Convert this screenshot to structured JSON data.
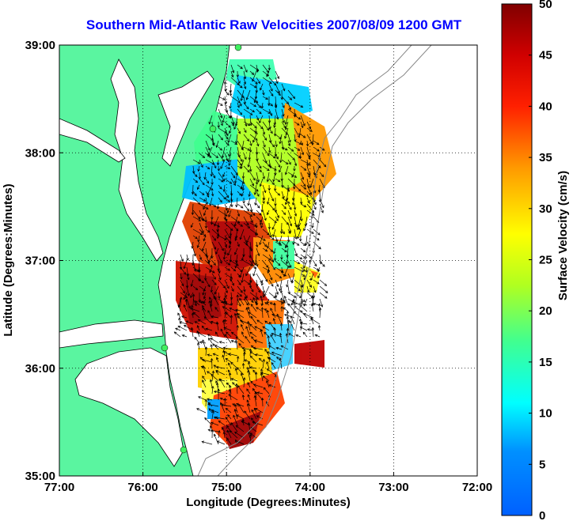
{
  "chart_data": {
    "type": "heatmap",
    "title": "Southern Mid-Atlantic Raw Velocities 2007/08/09 1200 GMT",
    "xlabel": "Longitude (Degrees:Minutes)",
    "ylabel": "Latitude (Degrees:Minutes)",
    "colorbar_label": "Surface Velocity (cm/s)",
    "xlim": [
      -77,
      -72
    ],
    "ylim": [
      35,
      39
    ],
    "x_ticks": [
      {
        "value": -77,
        "label": "77:00"
      },
      {
        "value": -76,
        "label": "76:00"
      },
      {
        "value": -75,
        "label": "75:00"
      },
      {
        "value": -74,
        "label": "74:00"
      },
      {
        "value": -73,
        "label": "73:00"
      },
      {
        "value": -72,
        "label": "72:00"
      }
    ],
    "y_ticks": [
      {
        "value": 35,
        "label": "35:00"
      },
      {
        "value": 36,
        "label": "36:00"
      },
      {
        "value": 37,
        "label": "37:00"
      },
      {
        "value": 38,
        "label": "38:00"
      },
      {
        "value": 39,
        "label": "39:00"
      }
    ],
    "colorbar_range": [
      0,
      50
    ],
    "colorbar_ticks": [
      0,
      5,
      10,
      15,
      20,
      25,
      30,
      35,
      40,
      45,
      50
    ],
    "colormap": "jet",
    "grid": true,
    "land_color": "#5af5a0"
  }
}
